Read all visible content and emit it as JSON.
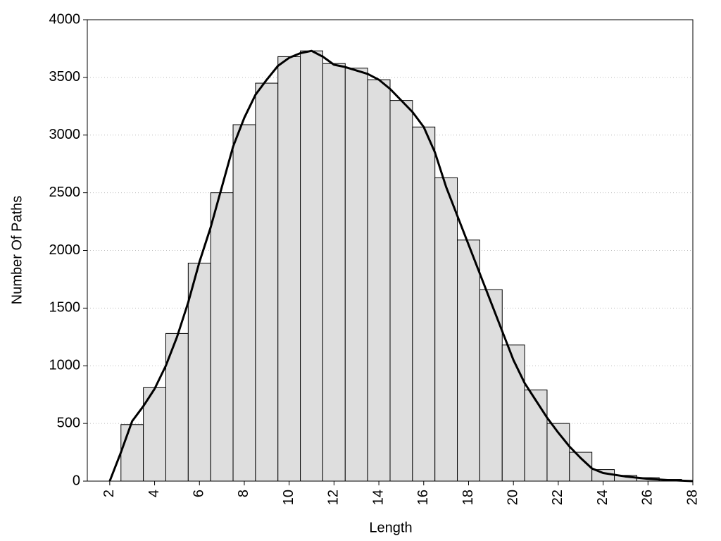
{
  "chart_data": {
    "type": "histogram",
    "x_label": "Length",
    "y_label": "Number Of Paths",
    "bins": [
      2.5,
      3.5,
      4.5,
      5.5,
      6.5,
      7.5,
      8.5,
      9.5,
      10.5,
      11.5,
      12.5,
      13.5,
      14.5,
      15.5,
      16.5,
      17.5,
      18.5,
      19.5,
      20.5,
      21.5,
      22.5,
      23.5,
      24.5,
      25.5,
      26.5,
      27.5
    ],
    "values": [
      490,
      810,
      1280,
      1890,
      2500,
      3090,
      3450,
      3680,
      3730,
      3620,
      3580,
      3480,
      3300,
      3070,
      2630,
      2090,
      1660,
      1180,
      790,
      500,
      250,
      100,
      50,
      30,
      15
    ],
    "color": "#dedede",
    "line": {
      "color": "#000000",
      "x": [
        2,
        2.5,
        3,
        3.5,
        4,
        4.5,
        5,
        5.5,
        6,
        6.5,
        7,
        7.5,
        8,
        8.5,
        9,
        9.5,
        10,
        10.5,
        11,
        11.5,
        12,
        12.5,
        13,
        13.5,
        14,
        14.5,
        15,
        15.5,
        16,
        16.5,
        17,
        17.5,
        18,
        18.5,
        19,
        19.5,
        20,
        20.5,
        21,
        21.5,
        22,
        22.5,
        23,
        23.5,
        24,
        25,
        26,
        27,
        28
      ],
      "values": [
        0,
        250,
        520,
        650,
        800,
        1000,
        1250,
        1550,
        1900,
        2200,
        2550,
        2900,
        3150,
        3350,
        3480,
        3600,
        3670,
        3710,
        3730,
        3680,
        3610,
        3590,
        3560,
        3530,
        3480,
        3400,
        3300,
        3200,
        3070,
        2850,
        2550,
        2300,
        2050,
        1800,
        1550,
        1300,
        1050,
        850,
        700,
        550,
        420,
        300,
        200,
        110,
        70,
        40,
        20,
        8,
        0
      ]
    },
    "xlim": [
      1,
      28
    ],
    "ylim": [
      0,
      4000
    ],
    "xticks": [
      2,
      4,
      6,
      8,
      10,
      12,
      14,
      16,
      18,
      20,
      22,
      24,
      26,
      28
    ],
    "yticks": [
      0,
      500,
      1000,
      1500,
      2000,
      2500,
      3000,
      3500,
      4000
    ],
    "grid": true
  }
}
